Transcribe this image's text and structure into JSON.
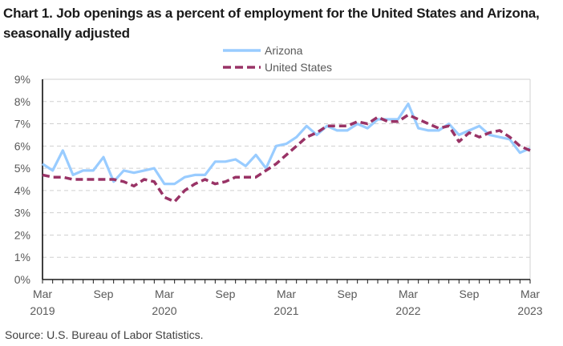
{
  "chart_data": {
    "type": "line",
    "title": "Chart 1. Job openings as a percent of employment for the United States and Arizona, seasonally adjusted",
    "xlabel": "",
    "ylabel": "",
    "ylim": [
      0,
      9
    ],
    "yticks": [
      0,
      1,
      2,
      3,
      4,
      5,
      6,
      7,
      8,
      9
    ],
    "ytick_labels": [
      "0%",
      "1%",
      "2%",
      "3%",
      "4%",
      "5%",
      "6%",
      "7%",
      "8%",
      "9%"
    ],
    "grid": "horizontal-dashed",
    "legend_position": "top-center",
    "x": [
      "Mar 2019",
      "Apr 2019",
      "May 2019",
      "Jun 2019",
      "Jul 2019",
      "Aug 2019",
      "Sep 2019",
      "Oct 2019",
      "Nov 2019",
      "Dec 2019",
      "Jan 2020",
      "Feb 2020",
      "Mar 2020",
      "Apr 2020",
      "May 2020",
      "Jun 2020",
      "Jul 2020",
      "Aug 2020",
      "Sep 2020",
      "Oct 2020",
      "Nov 2020",
      "Dec 2020",
      "Jan 2021",
      "Feb 2021",
      "Mar 2021",
      "Apr 2021",
      "May 2021",
      "Jun 2021",
      "Jul 2021",
      "Aug 2021",
      "Sep 2021",
      "Oct 2021",
      "Nov 2021",
      "Dec 2021",
      "Jan 2022",
      "Feb 2022",
      "Mar 2022",
      "Apr 2022",
      "May 2022",
      "Jun 2022",
      "Jul 2022",
      "Aug 2022",
      "Sep 2022",
      "Oct 2022",
      "Nov 2022",
      "Dec 2022",
      "Jan 2023",
      "Feb 2023",
      "Mar 2023"
    ],
    "xtick_labels": [
      {
        "index": 0,
        "month": "Mar",
        "year": "2019"
      },
      {
        "index": 6,
        "month": "Sep",
        "year": ""
      },
      {
        "index": 12,
        "month": "Mar",
        "year": "2020"
      },
      {
        "index": 18,
        "month": "Sep",
        "year": ""
      },
      {
        "index": 24,
        "month": "Mar",
        "year": "2021"
      },
      {
        "index": 30,
        "month": "Sep",
        "year": ""
      },
      {
        "index": 36,
        "month": "Mar",
        "year": "2022"
      },
      {
        "index": 42,
        "month": "Sep",
        "year": ""
      },
      {
        "index": 48,
        "month": "Mar",
        "year": "2023"
      }
    ],
    "series": [
      {
        "name": "Arizona",
        "color": "#99ccff",
        "style": "solid",
        "values": [
          5.2,
          4.9,
          5.8,
          4.7,
          4.9,
          4.9,
          5.5,
          4.4,
          4.9,
          4.8,
          4.9,
          5.0,
          4.3,
          4.3,
          4.6,
          4.7,
          4.7,
          5.3,
          5.3,
          5.4,
          5.1,
          5.6,
          5.0,
          6.0,
          6.1,
          6.4,
          6.9,
          6.5,
          6.9,
          6.7,
          6.7,
          7.0,
          6.8,
          7.2,
          7.2,
          7.2,
          7.9,
          6.8,
          6.7,
          6.7,
          7.0,
          6.5,
          6.7,
          6.9,
          6.5,
          6.4,
          6.3,
          5.7,
          5.9
        ]
      },
      {
        "name": "United States",
        "color": "#993366",
        "style": "dashed",
        "values": [
          4.7,
          4.6,
          4.6,
          4.5,
          4.5,
          4.5,
          4.5,
          4.5,
          4.4,
          4.2,
          4.5,
          4.4,
          3.7,
          3.5,
          4.0,
          4.3,
          4.5,
          4.3,
          4.4,
          4.6,
          4.6,
          4.6,
          4.9,
          5.2,
          5.6,
          6.0,
          6.4,
          6.6,
          6.9,
          6.9,
          6.9,
          7.1,
          7.0,
          7.3,
          7.1,
          7.1,
          7.4,
          7.2,
          7.0,
          6.8,
          6.9,
          6.2,
          6.6,
          6.4,
          6.6,
          6.7,
          6.4,
          6.0,
          5.8
        ]
      }
    ]
  },
  "source": "Source: U.S. Bureau of Labor Statistics."
}
